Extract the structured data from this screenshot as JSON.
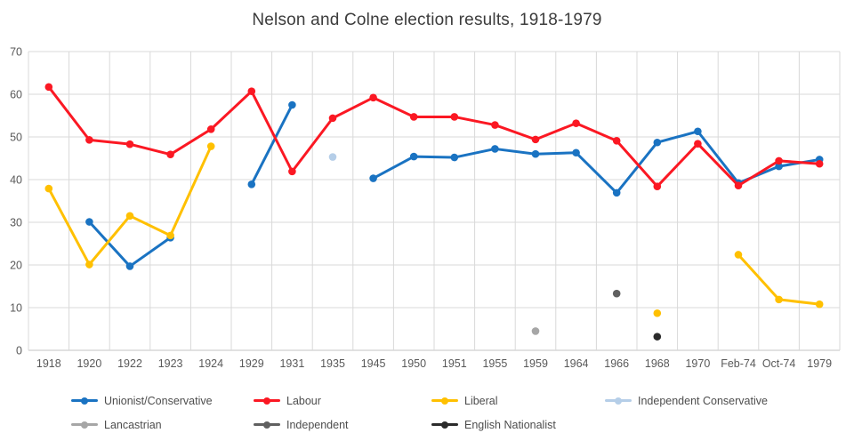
{
  "title": "Nelson and Colne election results, 1918-1979",
  "colors": {
    "title_text": "#3c3c3c",
    "axis_text": "#595959",
    "gridline": "#d9d9d9",
    "axis_line": "#c3c3c3",
    "background": "#ffffff",
    "legend_text": "#4d4d4d"
  },
  "chart_data": {
    "type": "line",
    "title": "Nelson and Colne election results, 1918-1979",
    "xlabel": "",
    "ylabel": "",
    "ylim": [
      0,
      70
    ],
    "y_ticks": [
      0,
      10,
      20,
      30,
      40,
      50,
      60,
      70
    ],
    "grid": true,
    "legend_position": "bottom",
    "categories": [
      "1918",
      "1920",
      "1922",
      "1923",
      "1924",
      "1929",
      "1931",
      "1935",
      "1945",
      "1950",
      "1951",
      "1955",
      "1959",
      "1964",
      "1966",
      "1968",
      "1970",
      "Feb-74",
      "Oct-74",
      "1979"
    ],
    "series": [
      {
        "name": "Unionist/Conservative",
        "color": "#1a73c2",
        "values": [
          null,
          30.1,
          19.7,
          26.4,
          null,
          38.9,
          57.5,
          null,
          40.3,
          45.4,
          45.2,
          47.2,
          46.0,
          46.3,
          36.9,
          48.7,
          51.3,
          39.2,
          43.1,
          44.7
        ]
      },
      {
        "name": "Labour",
        "color": "#fb1823",
        "values": [
          61.7,
          49.3,
          48.3,
          45.9,
          51.8,
          60.7,
          41.9,
          54.4,
          59.2,
          54.7,
          54.7,
          52.8,
          49.4,
          53.2,
          49.1,
          38.4,
          48.4,
          38.6,
          44.4,
          43.7
        ]
      },
      {
        "name": "Liberal",
        "color": "#ffc000",
        "values": [
          37.9,
          20.1,
          31.5,
          26.9,
          47.8,
          null,
          null,
          null,
          null,
          null,
          null,
          null,
          null,
          null,
          null,
          8.7,
          null,
          22.4,
          11.9,
          10.8
        ]
      },
      {
        "name": "Independent Conservative",
        "color": "#b5cee8",
        "values": [
          null,
          null,
          null,
          null,
          null,
          null,
          null,
          45.3,
          null,
          null,
          null,
          null,
          null,
          null,
          null,
          null,
          null,
          null,
          null,
          null
        ]
      },
      {
        "name": "Lancastrian",
        "color": "#a6a6a6",
        "values": [
          null,
          null,
          null,
          null,
          null,
          null,
          null,
          null,
          null,
          null,
          null,
          null,
          4.5,
          null,
          null,
          null,
          null,
          null,
          null,
          null
        ]
      },
      {
        "name": "Independent",
        "color": "#606060",
        "values": [
          null,
          null,
          null,
          null,
          null,
          null,
          null,
          null,
          null,
          null,
          null,
          null,
          null,
          null,
          13.3,
          null,
          null,
          null,
          null,
          null
        ]
      },
      {
        "name": "English Nationalist",
        "color": "#2b2b2b",
        "values": [
          null,
          null,
          null,
          null,
          null,
          null,
          null,
          null,
          null,
          null,
          null,
          null,
          null,
          null,
          null,
          3.2,
          null,
          null,
          null,
          null
        ]
      }
    ]
  }
}
